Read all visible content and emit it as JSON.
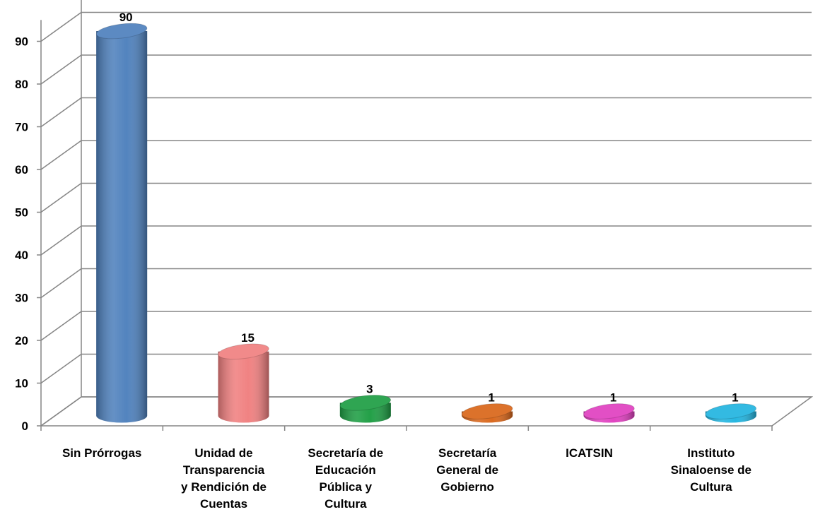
{
  "chart_data": {
    "type": "bar",
    "categories": [
      "Sin Prórrogas",
      "Unidad de\nTransparencia\ny Rendición de\nCuentas",
      "Secretaría de\nEducación\nPública y\nCultura",
      "Secretaría\nGeneral de\nGobierno",
      "ICATSIN",
      "Instituto\nSinaloense de\nCultura"
    ],
    "values": [
      90,
      15,
      3,
      1,
      1,
      1
    ],
    "data_labels": [
      "90",
      "15",
      "3",
      "1",
      "1",
      "1"
    ],
    "colors": [
      "#4F81BD",
      "#F08080",
      "#1E9E44",
      "#D9661A",
      "#E040C0",
      "#22B5E0"
    ],
    "ylim": [
      0,
      95
    ],
    "yticks": [
      "0",
      "10",
      "20",
      "30",
      "40",
      "50",
      "60",
      "70",
      "80",
      "90"
    ],
    "grid": true,
    "legend": "none",
    "style": "3d-cylinder"
  }
}
